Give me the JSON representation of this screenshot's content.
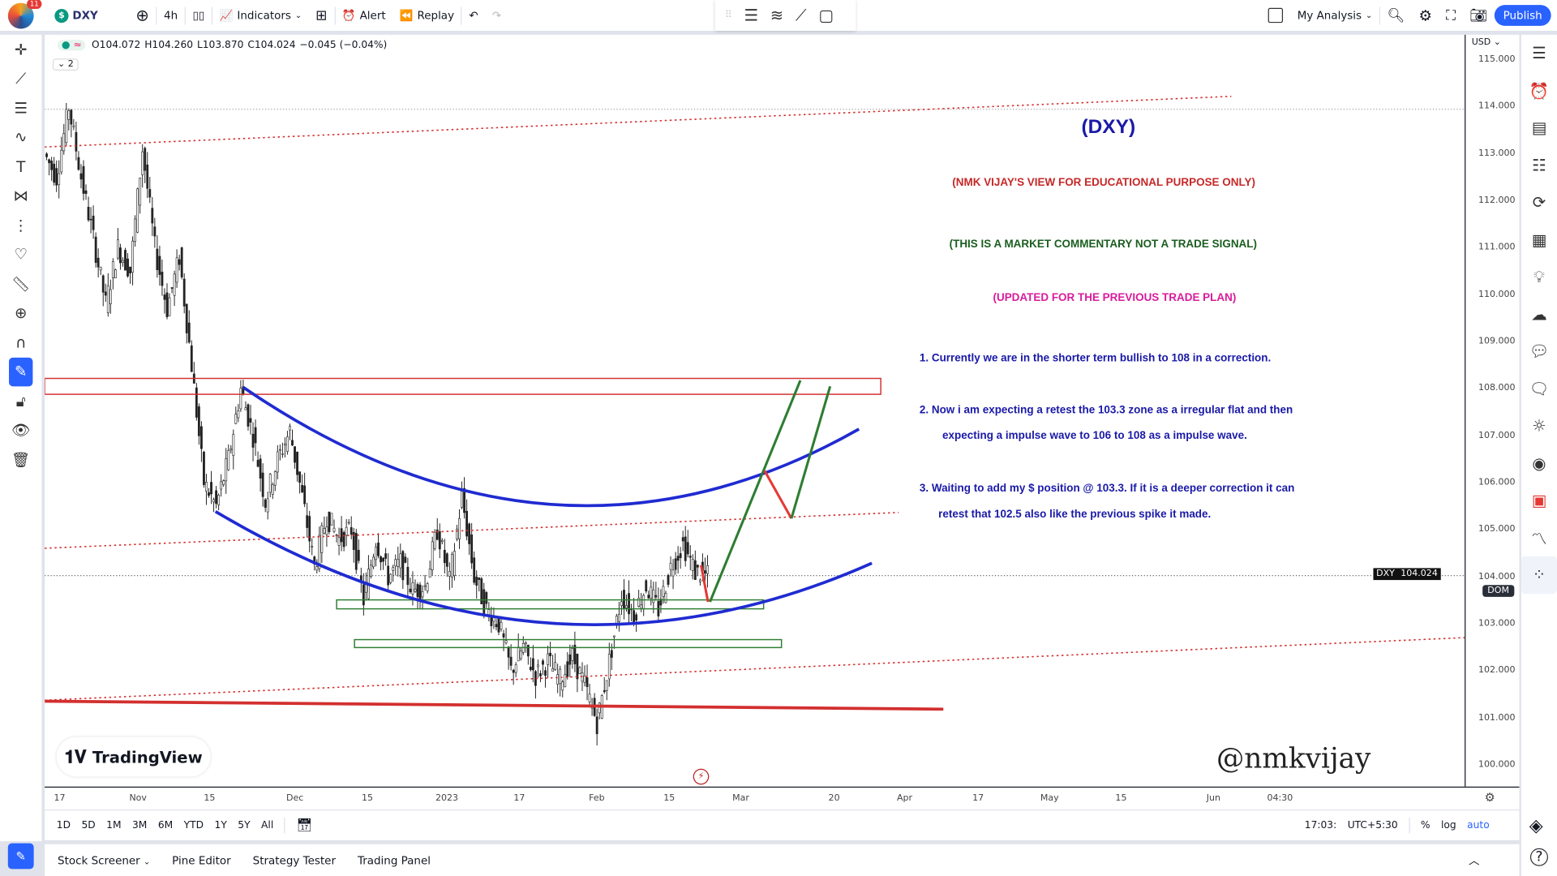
{
  "topbar": {
    "notification_count": "11",
    "symbol": "DXY",
    "interval": "4h",
    "indicators": "Indicators",
    "alert": "Alert",
    "replay": "Replay",
    "layout_name": "My Analysis",
    "publish": "Publish"
  },
  "legend": {
    "collapse_count": "2",
    "open": "O104.072",
    "high": "H104.260",
    "low": "L103.870",
    "close": "C104.024",
    "change": "−0.045 (−0.04%)"
  },
  "price_axis": {
    "currency": "USD",
    "ticks": [
      "115.000",
      "114.000",
      "113.000",
      "112.000",
      "111.000",
      "110.000",
      "109.000",
      "108.000",
      "107.000",
      "106.000",
      "105.000",
      "104.000",
      "103.000",
      "102.000",
      "101.000",
      "100.000"
    ],
    "last_symbol": "DXY",
    "last_price": "104.024",
    "dom": "DOM"
  },
  "time_axis": {
    "ticks": [
      "17",
      "Nov",
      "15",
      "Dec",
      "15",
      "2023",
      "17",
      "Feb",
      "15",
      "Mar",
      "20",
      "Apr",
      "17",
      "May",
      "15",
      "Jun",
      "04:30"
    ]
  },
  "range_bar": {
    "ranges": [
      "1D",
      "5D",
      "1M",
      "3M",
      "6M",
      "YTD",
      "1Y",
      "5Y",
      "All"
    ],
    "clock": "17:03:",
    "timezone": "UTC+5:30",
    "percent": "%",
    "log": "log",
    "auto": "auto"
  },
  "bottom_tabs": [
    "Stock Screener",
    "Pine Editor",
    "Strategy Tester",
    "Trading Panel"
  ],
  "branding": {
    "logo_text": "TradingView",
    "signature": "@nmkvijay"
  },
  "annotations": {
    "title": "(DXY)",
    "disclaimer": "(NMK VIJAY'S VIEW FOR EDUCATIONAL PURPOSE ONLY)",
    "commentary": "(THIS IS A MARKET COMMENTARY NOT A TRADE SIGNAL)",
    "updated": "(UPDATED FOR THE PREVIOUS TRADE PLAN)",
    "point1": "1. Currently we are in the shorter term bullish to 108 in a correction.",
    "point2a": "2. Now i am expecting a retest the 103.3 zone as a irregular flat and then",
    "point2b": "expecting a impulse wave to 106 to 108 as a impulse wave.",
    "point3a": "3. Waiting to add my $ position @ 103.3. If it is a deeper correction it can",
    "point3b": "retest that 102.5 also like the previous spike it made."
  },
  "chart_data": {
    "type": "candlestick",
    "symbol": "DXY",
    "interval": "4h",
    "ylim": [
      100,
      115
    ],
    "closes_approx": [
      113.0,
      112.5,
      114.0,
      112.5,
      111.2,
      109.8,
      111.0,
      110.5,
      113.1,
      111.0,
      109.7,
      110.8,
      108.5,
      106.0,
      105.5,
      106.5,
      108.0,
      107.0,
      105.6,
      106.5,
      107.1,
      105.7,
      104.2,
      105.3,
      104.8,
      105.0,
      103.5,
      104.8,
      104.0,
      104.3,
      103.7,
      103.8,
      105.0,
      103.9,
      105.7,
      104.0,
      103.3,
      103.0,
      102.0,
      102.5,
      101.9,
      102.2,
      101.8,
      102.3,
      101.7,
      100.9,
      102.2,
      103.6,
      103.2,
      103.8,
      103.3,
      104.2,
      104.7,
      104.1,
      104.02
    ],
    "zones": [
      {
        "low": 107.8,
        "high": 108.2,
        "color": "#c62828"
      },
      {
        "low": 103.4,
        "high": 103.6,
        "color": "#2e7d32"
      },
      {
        "low": 102.6,
        "high": 102.75,
        "color": "#2e7d32"
      }
    ],
    "colors": {
      "arc": "#1f2bd1",
      "impulse": "#2e7d32",
      "correction": "#e53935",
      "support": "#d32f2f",
      "text_blue": "#1a1aa8",
      "text_red": "#c62828",
      "text_green": "#1b5e20",
      "text_magenta": "#d81b9c"
    }
  }
}
